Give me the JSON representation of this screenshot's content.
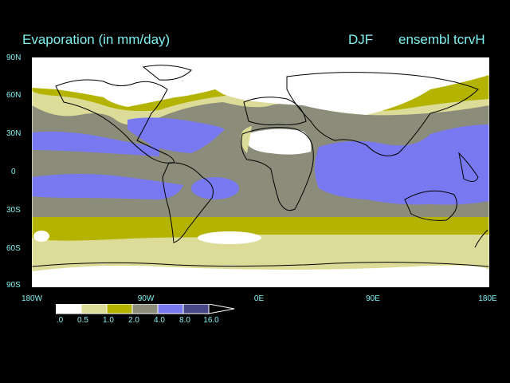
{
  "header": {
    "title": "Evaporation (in mm/day)",
    "season": "DJF",
    "run": "ensembl tcrvH"
  },
  "axes": {
    "lat_labels": [
      "90N",
      "60N",
      "30N",
      "0",
      "30S",
      "60S",
      "90S"
    ],
    "lon_labels": [
      "180W",
      "90W",
      "0E",
      "90E",
      "180E"
    ]
  },
  "legend": {
    "labels": [
      ".0",
      "0.5",
      "1.0",
      "2.0",
      "4.0",
      "8.0",
      "16.0"
    ],
    "colors": [
      "#ffffff",
      "#dcdc98",
      "#b4b400",
      "#8c8c7a",
      "#7878f0",
      "#484888"
    ]
  },
  "palette": {
    "land_outline": "#000000",
    "label_color": "#7ff0f0"
  }
}
